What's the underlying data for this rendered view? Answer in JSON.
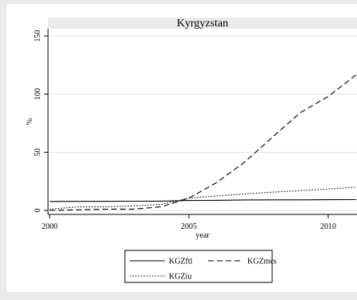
{
  "chart_data": {
    "type": "line",
    "title": "Kyrgyzstan",
    "xlabel": "year",
    "ylabel": "%",
    "xlim": [
      2000,
      2011
    ],
    "ylim": [
      0,
      150
    ],
    "x_ticks": [
      2000,
      2005,
      2010
    ],
    "y_ticks": [
      0,
      50,
      100,
      150
    ],
    "grid": true,
    "legend_position": "bottom",
    "x": [
      2000,
      2001,
      2002,
      2003,
      2004,
      2005,
      2006,
      2007,
      2008,
      2009,
      2010,
      2011
    ],
    "series": [
      {
        "name": "KGZftl",
        "style": "solid",
        "values": [
          7.7,
          7.8,
          7.8,
          7.9,
          8.0,
          8.5,
          8.7,
          9.0,
          9.1,
          9.1,
          9.2,
          9.3
        ]
      },
      {
        "name": "KGZmcs",
        "style": "dashed",
        "values": [
          0.0,
          0.5,
          1.0,
          1.1,
          3.0,
          10.5,
          24.0,
          41.5,
          63.0,
          84.0,
          98.0,
          116.5
        ]
      },
      {
        "name": "KGZiu",
        "style": "dotted",
        "values": [
          1.0,
          3.0,
          3.0,
          3.9,
          5.1,
          10.5,
          12.4,
          14.2,
          15.7,
          17.0,
          18.4,
          20.0
        ]
      }
    ]
  }
}
